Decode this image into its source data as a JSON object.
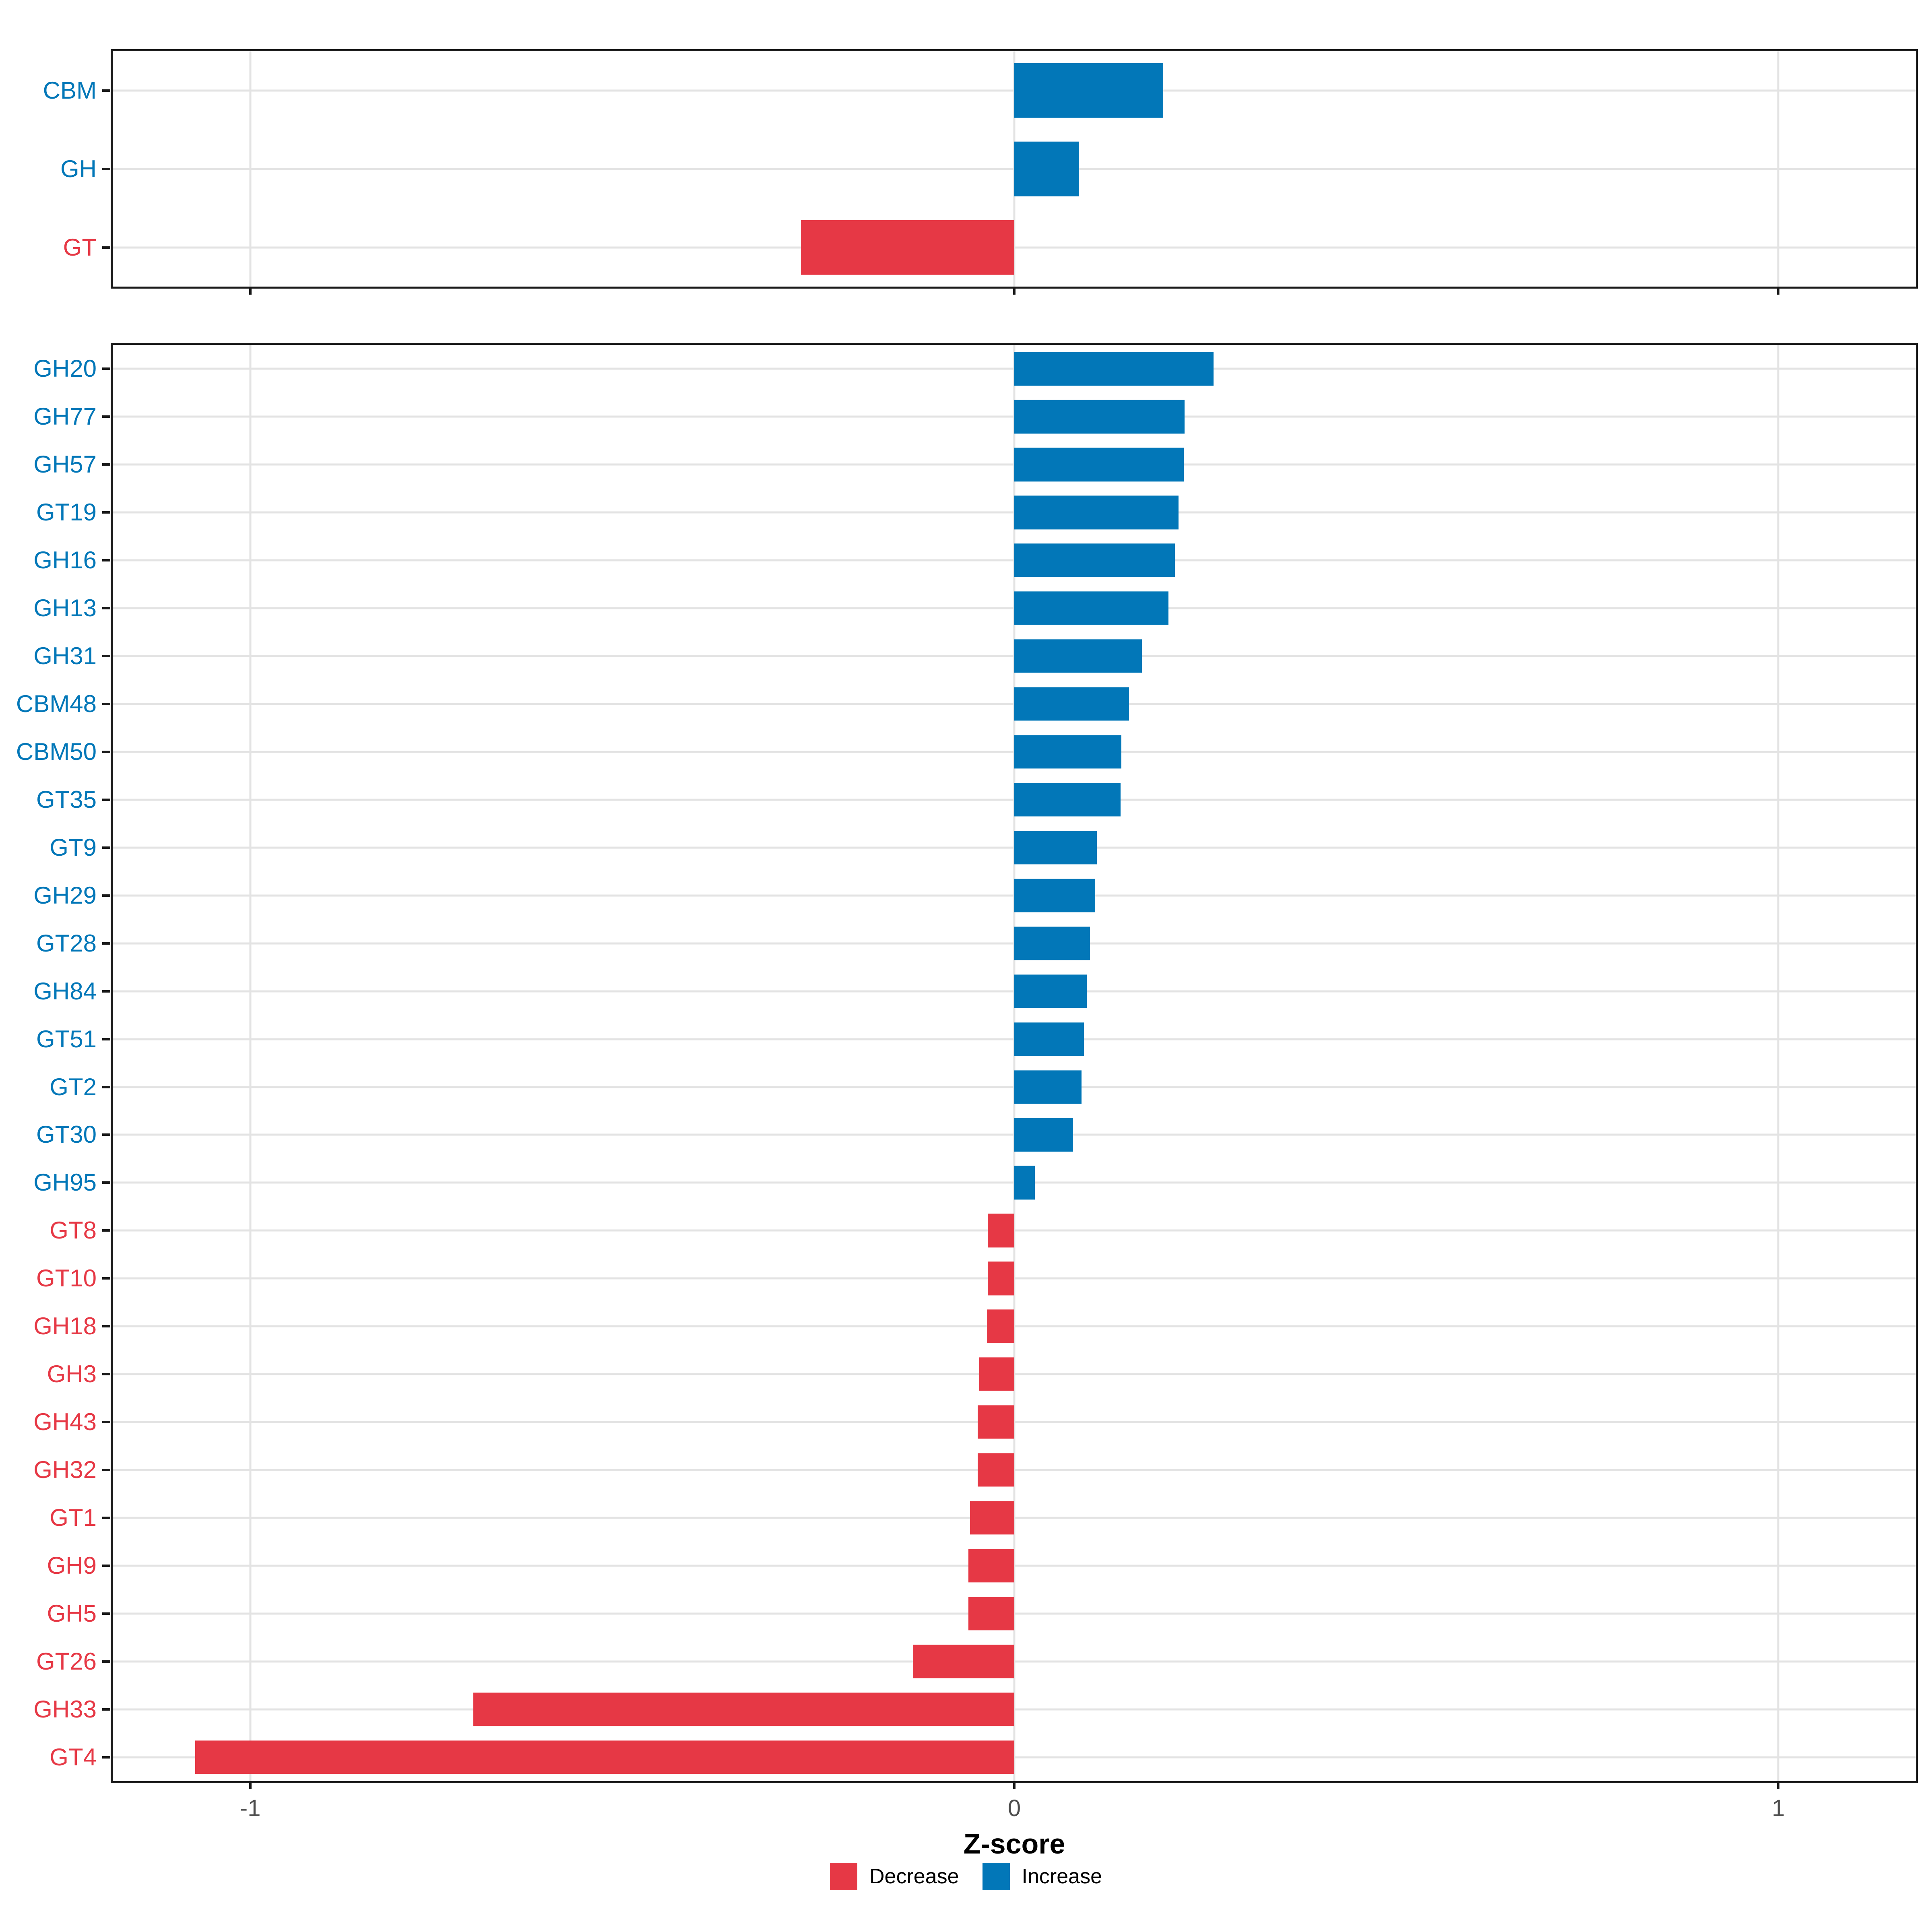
{
  "chart_data": {
    "type": "bar",
    "orientation": "horizontal",
    "title": "",
    "xlabel": "Z-score",
    "xlim": [
      -1.18,
      1.18
    ],
    "xticks": [
      -1,
      0,
      1
    ],
    "xtick_labels": [
      "-1",
      "0",
      "1"
    ],
    "grid": {
      "vertical_major_at_xticks": true,
      "horizontal_per_category": true,
      "minor": false
    },
    "legend": {
      "position": "bottom",
      "entries": [
        {
          "label": "Decrease",
          "key": "decrease"
        },
        {
          "label": "Increase",
          "key": "increase"
        }
      ]
    },
    "panels": [
      {
        "name": "cazyme-class-panel",
        "rows": [
          {
            "label": "CBM",
            "value": 0.195,
            "direction": "increase"
          },
          {
            "label": "GH",
            "value": 0.085,
            "direction": "increase"
          },
          {
            "label": "GT",
            "value": -0.279,
            "direction": "decrease"
          }
        ]
      },
      {
        "name": "cazyme-family-panel",
        "rows": [
          {
            "label": "GH20",
            "value": 0.261,
            "direction": "increase"
          },
          {
            "label": "GH77",
            "value": 0.223,
            "direction": "increase"
          },
          {
            "label": "GH57",
            "value": 0.222,
            "direction": "increase"
          },
          {
            "label": "GT19",
            "value": 0.215,
            "direction": "increase"
          },
          {
            "label": "GH16",
            "value": 0.21,
            "direction": "increase"
          },
          {
            "label": "GH13",
            "value": 0.202,
            "direction": "increase"
          },
          {
            "label": "GH31",
            "value": 0.167,
            "direction": "increase"
          },
          {
            "label": "CBM48",
            "value": 0.15,
            "direction": "increase"
          },
          {
            "label": "CBM50",
            "value": 0.14,
            "direction": "increase"
          },
          {
            "label": "GT35",
            "value": 0.139,
            "direction": "increase"
          },
          {
            "label": "GT9",
            "value": 0.108,
            "direction": "increase"
          },
          {
            "label": "GH29",
            "value": 0.106,
            "direction": "increase"
          },
          {
            "label": "GT28",
            "value": 0.099,
            "direction": "increase"
          },
          {
            "label": "GH84",
            "value": 0.095,
            "direction": "increase"
          },
          {
            "label": "GT51",
            "value": 0.091,
            "direction": "increase"
          },
          {
            "label": "GT2",
            "value": 0.088,
            "direction": "increase"
          },
          {
            "label": "GT30",
            "value": 0.077,
            "direction": "increase"
          },
          {
            "label": "GH95",
            "value": 0.027,
            "direction": "increase"
          },
          {
            "label": "GT8",
            "value": -0.035,
            "direction": "decrease"
          },
          {
            "label": "GT10",
            "value": -0.035,
            "direction": "decrease"
          },
          {
            "label": "GH18",
            "value": -0.036,
            "direction": "decrease"
          },
          {
            "label": "GH3",
            "value": -0.046,
            "direction": "decrease"
          },
          {
            "label": "GH43",
            "value": -0.048,
            "direction": "decrease"
          },
          {
            "label": "GH32",
            "value": -0.048,
            "direction": "decrease"
          },
          {
            "label": "GT1",
            "value": -0.058,
            "direction": "decrease"
          },
          {
            "label": "GH9",
            "value": -0.06,
            "direction": "decrease"
          },
          {
            "label": "GH5",
            "value": -0.06,
            "direction": "decrease"
          },
          {
            "label": "GT26",
            "value": -0.133,
            "direction": "decrease"
          },
          {
            "label": "GH33",
            "value": -0.708,
            "direction": "decrease"
          },
          {
            "label": "GT4",
            "value": -1.072,
            "direction": "decrease"
          }
        ]
      }
    ]
  },
  "style": {
    "increase_color": "#0277b8",
    "decrease_color": "#e63845",
    "grid_color": "#e3e3e3",
    "panel_border_color": "#1a1a1a",
    "tick_color": "#1a1a1a",
    "axis_text_color": "#4d4d4d",
    "background": "#ffffff"
  }
}
